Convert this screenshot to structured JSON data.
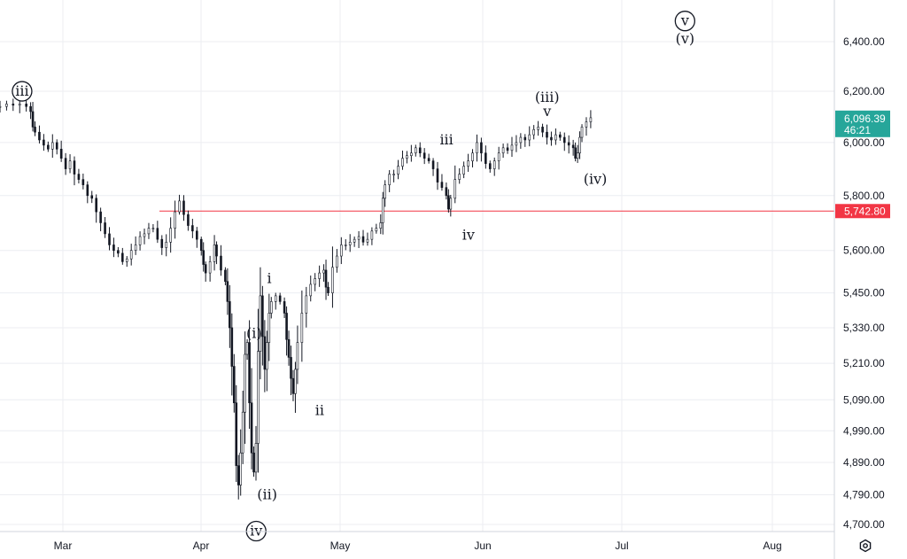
{
  "chart_data": {
    "type": "candlestick",
    "y_scale": "log",
    "ylim": [
      4640,
      6540
    ],
    "grid": true,
    "x_labels": [
      "Mar",
      "Apr",
      "May",
      "Jun",
      "Jul",
      "Aug"
    ],
    "y_labels": [
      "6,400.00",
      "6,200.00",
      "6,000.00",
      "5,800.00",
      "5,600.00",
      "5,450.00",
      "5,330.00",
      "5,210.00",
      "5,090.00",
      "4,990.00",
      "4,890.00",
      "4,790.00",
      "4,700.00"
    ],
    "y_values": [
      6400,
      6200,
      6000,
      5800,
      5600,
      5450,
      5330,
      5210,
      5090,
      4990,
      4890,
      4790,
      4700
    ],
    "last_price": {
      "value": 6096.39,
      "label": "6,096.39",
      "countdown": "46:21",
      "color": "#26a69a"
    },
    "horizontal_line": {
      "value": 5742.8,
      "label": "5,742.80",
      "color": "#f23645"
    },
    "series": [
      {
        "name": "",
        "points": [
          [
            0,
            6140
          ],
          [
            3,
            6150
          ],
          [
            6,
            6145
          ],
          [
            9,
            6150
          ],
          [
            12,
            6140
          ],
          [
            14,
            6120
          ],
          [
            15,
            6060
          ],
          [
            16,
            6040
          ],
          [
            18,
            6010
          ],
          [
            20,
            5990
          ],
          [
            22,
            5975
          ],
          [
            24,
            6000
          ],
          [
            26,
            5975
          ],
          [
            28,
            5940
          ],
          [
            30,
            5900
          ],
          [
            32,
            5930
          ],
          [
            34,
            5880
          ],
          [
            36,
            5860
          ],
          [
            38,
            5840
          ],
          [
            40,
            5800
          ],
          [
            42,
            5790
          ],
          [
            44,
            5740
          ],
          [
            46,
            5700
          ],
          [
            48,
            5660
          ],
          [
            50,
            5620
          ],
          [
            52,
            5600
          ],
          [
            54,
            5590
          ],
          [
            56,
            5560
          ],
          [
            58,
            5570
          ],
          [
            60,
            5600
          ],
          [
            62,
            5620
          ],
          [
            64,
            5650
          ],
          [
            66,
            5660
          ],
          [
            68,
            5680
          ],
          [
            70,
            5680
          ],
          [
            72,
            5640
          ],
          [
            74,
            5610
          ],
          [
            76,
            5630
          ],
          [
            78,
            5680
          ],
          [
            80,
            5740
          ],
          [
            82,
            5780
          ],
          [
            84,
            5730
          ],
          [
            86,
            5690
          ],
          [
            88,
            5670
          ],
          [
            90,
            5640
          ],
          [
            92,
            5600
          ],
          [
            93,
            5550
          ],
          [
            94,
            5520
          ],
          [
            96,
            5560
          ],
          [
            98,
            5620
          ],
          [
            99,
            5580
          ],
          [
            101,
            5530
          ],
          [
            103,
            5490
          ],
          [
            104,
            5420
          ],
          [
            105,
            5330
          ],
          [
            106,
            5200
          ],
          [
            107,
            5080
          ],
          [
            108,
            4880
          ],
          [
            109,
            4820
          ],
          [
            110,
            4920
          ],
          [
            111,
            5050
          ],
          [
            112,
            5240
          ],
          [
            113,
            5280
          ],
          [
            114,
            5080
          ],
          [
            115,
            4920
          ],
          [
            116,
            4860
          ],
          [
            117,
            4950
          ],
          [
            118,
            5250
          ],
          [
            119,
            5440
          ],
          [
            120,
            5300
          ],
          [
            121,
            5190
          ],
          [
            122,
            5280
          ],
          [
            123,
            5380
          ],
          [
            124,
            5420
          ],
          [
            126,
            5440
          ],
          [
            128,
            5420
          ],
          [
            130,
            5380
          ],
          [
            131,
            5290
          ],
          [
            132,
            5230
          ],
          [
            133,
            5160
          ],
          [
            134,
            5110
          ],
          [
            135,
            5190
          ],
          [
            136,
            5280
          ],
          [
            138,
            5380
          ],
          [
            140,
            5440
          ],
          [
            142,
            5480
          ],
          [
            144,
            5500
          ],
          [
            146,
            5520
          ],
          [
            148,
            5530
          ],
          [
            149,
            5470
          ],
          [
            150,
            5450
          ],
          [
            152,
            5540
          ],
          [
            154,
            5580
          ],
          [
            156,
            5620
          ],
          [
            158,
            5620
          ],
          [
            160,
            5630
          ],
          [
            162,
            5640
          ],
          [
            164,
            5650
          ],
          [
            166,
            5630
          ],
          [
            168,
            5640
          ],
          [
            170,
            5670
          ],
          [
            172,
            5680
          ],
          [
            174,
            5700
          ],
          [
            175,
            5790
          ],
          [
            176,
            5840
          ],
          [
            178,
            5880
          ],
          [
            180,
            5880
          ],
          [
            182,
            5910
          ],
          [
            184,
            5940
          ],
          [
            186,
            5950
          ],
          [
            188,
            5960
          ],
          [
            190,
            5980
          ],
          [
            192,
            5960
          ],
          [
            194,
            5940
          ],
          [
            196,
            5930
          ],
          [
            198,
            5900
          ],
          [
            200,
            5850
          ],
          [
            202,
            5830
          ],
          [
            204,
            5800
          ],
          [
            205,
            5750
          ],
          [
            206,
            5790
          ],
          [
            208,
            5860
          ],
          [
            210,
            5880
          ],
          [
            212,
            5910
          ],
          [
            214,
            5930
          ],
          [
            216,
            5960
          ],
          [
            218,
            6000
          ],
          [
            220,
            5960
          ],
          [
            222,
            5920
          ],
          [
            224,
            5900
          ],
          [
            226,
            5930
          ],
          [
            228,
            5960
          ],
          [
            230,
            5980
          ],
          [
            232,
            5970
          ],
          [
            234,
            5990
          ],
          [
            236,
            6000
          ],
          [
            238,
            6020
          ],
          [
            240,
            6010
          ],
          [
            242,
            6030
          ],
          [
            244,
            6050
          ],
          [
            246,
            6060
          ],
          [
            248,
            6040
          ],
          [
            250,
            6020
          ],
          [
            252,
            6010
          ],
          [
            254,
            6030
          ],
          [
            256,
            6020
          ],
          [
            258,
            6000
          ],
          [
            260,
            5990
          ],
          [
            262,
            5980
          ],
          [
            263,
            5940
          ],
          [
            264,
            5960
          ],
          [
            265,
            6020
          ],
          [
            266,
            6060
          ],
          [
            268,
            6080
          ],
          [
            270,
            6096
          ]
        ]
      }
    ],
    "wave_labels": [
      {
        "text": "iii",
        "circled": true,
        "x": 2,
        "y": 6200
      },
      {
        "text": "iv",
        "circled": true,
        "x": 109,
        "y": 4680
      },
      {
        "text": "(i)",
        "circled": false,
        "x": 108,
        "y": 5310
      },
      {
        "text": "(ii)",
        "circled": false,
        "x": 114,
        "y": 4790
      },
      {
        "text": "i",
        "circled": false,
        "x": 115,
        "y": 5500
      },
      {
        "text": "ii",
        "circled": false,
        "x": 138,
        "y": 5055
      },
      {
        "text": "iii",
        "circled": false,
        "x": 196,
        "y": 6010
      },
      {
        "text": "iv",
        "circled": false,
        "x": 206,
        "y": 5655
      },
      {
        "text": "(iii)",
        "circled": false,
        "x": 242,
        "y": 6175
      },
      {
        "text": "v",
        "circled": false,
        "x": 242,
        "y": 6120
      },
      {
        "text": "(iv)",
        "circled": false,
        "x": 264,
        "y": 5860
      },
      {
        "text": "v",
        "circled": true,
        "x": 305,
        "y": 6485
      },
      {
        "text": "(v)",
        "circled": false,
        "x": 305,
        "y": 6410
      }
    ]
  }
}
